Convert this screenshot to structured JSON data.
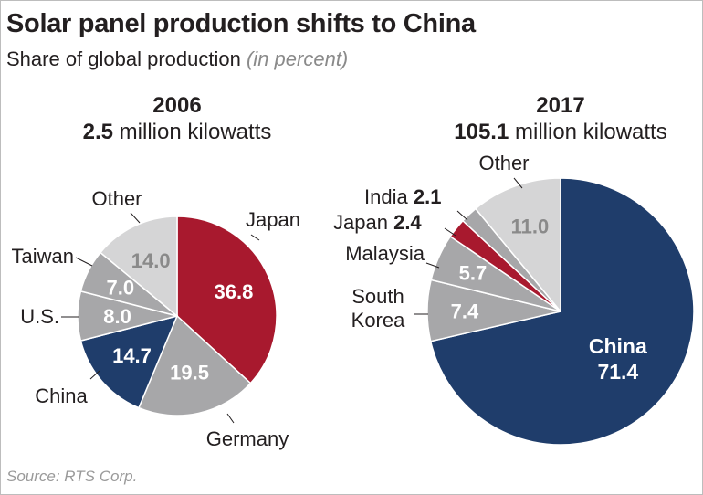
{
  "title": "Solar panel production shifts to China",
  "subtitle": "Share of global production",
  "subtitle_unit": "(in percent)",
  "source": "Source: RTS Corp.",
  "colors": {
    "china": "#1f3d6b",
    "japan": "#a8192e",
    "gray": "#a7a7a9",
    "other": "#d5d5d6",
    "label_dark": "#231f20",
    "value_light": "#ffffff",
    "value_gray": "#8a8a8a"
  },
  "chart_data": [
    {
      "type": "pie",
      "year": "2006",
      "total_value": "2.5",
      "total_unit": "million kilowatts",
      "slices": [
        {
          "name": "Japan",
          "value": 36.8,
          "label": "36.8",
          "color": "#a8192e"
        },
        {
          "name": "Germany",
          "value": 19.5,
          "label": "19.5",
          "color": "#a7a7a9"
        },
        {
          "name": "China",
          "value": 14.7,
          "label": "14.7",
          "color": "#1f3d6b"
        },
        {
          "name": "U.S.",
          "value": 8.0,
          "label": "8.0",
          "color": "#a7a7a9"
        },
        {
          "name": "Taiwan",
          "value": 7.0,
          "label": "7.0",
          "color": "#a7a7a9"
        },
        {
          "name": "Other",
          "value": 14.0,
          "label": "14.0",
          "color": "#d5d5d6"
        }
      ]
    },
    {
      "type": "pie",
      "year": "2017",
      "total_value": "105.1",
      "total_unit": "million kilowatts",
      "slices": [
        {
          "name": "China",
          "value": 71.4,
          "label": "71.4",
          "color": "#1f3d6b"
        },
        {
          "name": "South Korea",
          "value": 7.4,
          "label": "7.4",
          "color": "#a7a7a9"
        },
        {
          "name": "Malaysia",
          "value": 5.7,
          "label": "5.7",
          "color": "#a7a7a9"
        },
        {
          "name": "Japan",
          "value": 2.4,
          "label": "2.4",
          "color": "#a8192e"
        },
        {
          "name": "India",
          "value": 2.1,
          "label": "2.1",
          "color": "#a7a7a9"
        },
        {
          "name": "Other",
          "value": 11.0,
          "label": "11.0",
          "color": "#d5d5d6"
        }
      ]
    }
  ]
}
